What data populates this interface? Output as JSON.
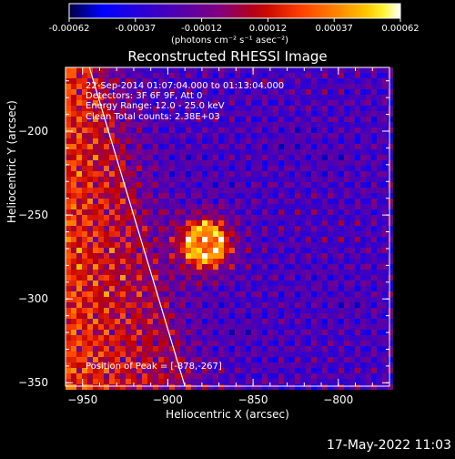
{
  "colorbar": {
    "tick_labels": [
      "-0.00062",
      "-0.00037",
      "-0.00012",
      "0.00012",
      "0.00037",
      "0.00062"
    ],
    "units": "(photons cm⁻² s⁻¹ asec⁻²)",
    "colors": [
      "#000040",
      "#0000ff",
      "#4000c0",
      "#800080",
      "#c00000",
      "#ff4000",
      "#ff8000",
      "#ffc000",
      "#ffff00",
      "#ffffff"
    ]
  },
  "chart_data": {
    "type": "heatmap",
    "title": "Reconstructed RHESSI Image",
    "xlabel": "Heliocentric X (arcsec)",
    "ylabel": "Heliocentric Y (arcsec)",
    "xlim": [
      -960,
      -770
    ],
    "ylim": [
      -352,
      -162
    ],
    "x_ticks": [
      -950,
      -900,
      -850,
      -800
    ],
    "y_ticks": [
      -350,
      -300,
      -250,
      -200
    ],
    "x_tick_labels": [
      "−950",
      "−900",
      "−850",
      "−800"
    ],
    "y_tick_labels": [
      "−350",
      "−300",
      "−250",
      "−200"
    ],
    "value_range": [
      -0.00062,
      0.00062
    ],
    "peak_position": [
      -878,
      -267
    ],
    "limb_line": [
      [
        -946,
        -162
      ],
      [
        -890,
        -352
      ]
    ],
    "info_lines": [
      "22-Sep-2014 01:07:04.000 to 01:13:04.000",
      "Detectors: 3F 6F 9F, Att 0",
      "Energy Range: 12.0 - 25.0 keV",
      "Clean    Total counts: 2.38E+03"
    ],
    "peak_label": "Position of Peak = [-878,-267]"
  },
  "footer": {
    "timestamp": "17-May-2022 11:03"
  }
}
